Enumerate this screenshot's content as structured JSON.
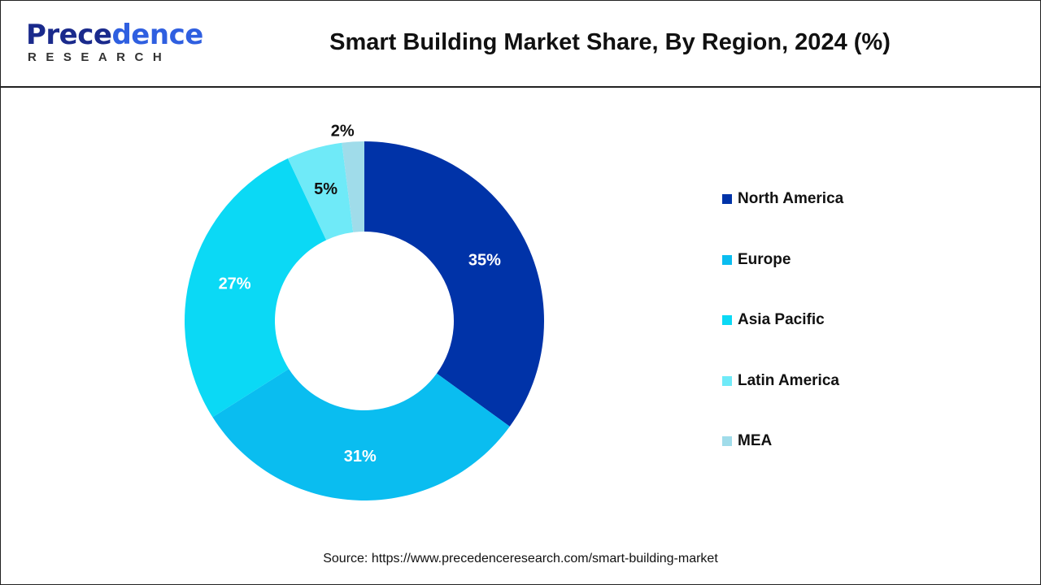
{
  "logo": {
    "text_main_a": "Prece",
    "text_main_b": "dence",
    "text_sub": "RESEARCH"
  },
  "chart_data": {
    "type": "pie",
    "variant": "donut",
    "title": "Smart Building Market Share, By Region, 2024 (%)",
    "categories": [
      "North America",
      "Europe",
      "Asia Pacific",
      "Latin America",
      "MEA"
    ],
    "values": [
      35,
      31,
      27,
      5,
      2
    ],
    "data_labels": [
      "35%",
      "31%",
      "27%",
      "5%",
      "2%"
    ],
    "colors": [
      "#0033A8",
      "#0ABDF0",
      "#0BD9F5",
      "#6FEAF8",
      "#A0DCEA"
    ],
    "label_colors": [
      "#ffffff",
      "#ffffff",
      "#ffffff",
      "#111111",
      "#111111"
    ],
    "legend_position": "right"
  },
  "source": "Source: https://www.precedenceresearch.com/smart-building-market"
}
